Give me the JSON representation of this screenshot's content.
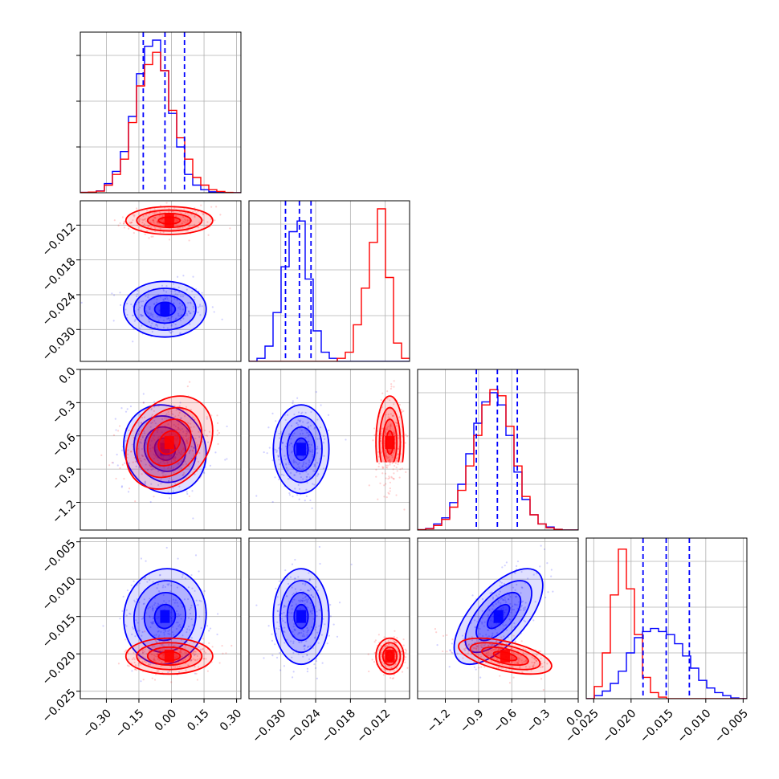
{
  "chart_data": {
    "type": "corner",
    "parameters": [
      {
        "id": "p0",
        "range": [
          -0.42,
          0.32
        ],
        "ticks": [
          -0.3,
          -0.15,
          0.0,
          0.15,
          0.3
        ],
        "tick_labels": [
          "−0.30",
          "−0.15",
          "0.00",
          "0.15",
          "0.30"
        ]
      },
      {
        "id": "p1",
        "range": [
          -0.0355,
          -0.0078
        ],
        "ticks": [
          -0.03,
          -0.024,
          -0.018,
          -0.012
        ],
        "tick_labels": [
          "−0.030",
          "−0.024",
          "−0.018",
          "−0.012"
        ]
      },
      {
        "id": "p2",
        "range": [
          -1.45,
          0.0
        ],
        "ticks": [
          -1.2,
          -0.9,
          -0.6,
          -0.3,
          0.0
        ],
        "tick_labels": [
          "−1.2",
          "−0.9",
          "−0.6",
          "−0.3",
          "0.0"
        ]
      },
      {
        "id": "p3",
        "range": [
          -0.026,
          -0.0045
        ],
        "ticks": [
          -0.025,
          -0.02,
          -0.015,
          -0.01,
          -0.005
        ],
        "tick_labels": [
          "−0.025",
          "−0.020",
          "−0.015",
          "−0.010",
          "−0.005"
        ]
      }
    ],
    "y_tick_params": {
      "p1": {
        "ticks": [
          -0.03,
          -0.024,
          -0.018,
          -0.012
        ],
        "tick_labels": [
          "−0.030",
          "−0.024",
          "−0.018",
          "−0.012"
        ]
      },
      "p2": {
        "ticks": [
          -1.2,
          -0.9,
          -0.6,
          -0.3,
          0.0
        ],
        "tick_labels": [
          "−1.2",
          "−0.9",
          "−0.6",
          "−0.3",
          "0.0"
        ]
      },
      "p3": {
        "ticks": [
          -0.025,
          -0.02,
          -0.015,
          -0.01,
          -0.005
        ],
        "tick_labels": [
          "−0.025",
          "−0.020",
          "−0.015",
          "−0.010",
          "−0.005"
        ]
      }
    },
    "series": [
      {
        "color": "#0000ff",
        "means": [
          -0.03,
          -0.0265,
          -0.72,
          -0.015
        ],
        "sigmas": [
          0.095,
          0.0024,
          0.2,
          0.0032
        ],
        "correlations": {
          "0-1": 0.0,
          "0-2": -0.1,
          "0-3": 0.05,
          "1-2": 0.0,
          "1-3": 0.0,
          "2-3": 0.65
        },
        "quantiles": [
          [
            -0.13,
            -0.03,
            0.06
          ],
          [
            -0.0292,
            -0.0268,
            -0.0248
          ],
          [
            -0.92,
            -0.73,
            -0.55
          ],
          [
            -0.0184,
            -0.0153,
            -0.0122
          ]
        ]
      },
      {
        "color": "#ff0000",
        "means": [
          -0.01,
          -0.0112,
          -0.66,
          -0.0203
        ],
        "sigmas": [
          0.1,
          0.0012,
          0.21,
          0.0012
        ],
        "correlations": {
          "0-1": 0.0,
          "0-2": 0.25,
          "0-3": 0.0,
          "1-2": 0.0,
          "1-3": 0.0,
          "2-3": -0.55
        },
        "quantiles": []
      }
    ],
    "histograms": [
      {
        "param": "p0",
        "bins": [
          -0.42,
          0.32
        ],
        "n_bins": 20,
        "blue": [
          0.002,
          0.004,
          0.012,
          0.06,
          0.14,
          0.27,
          0.5,
          0.78,
          0.96,
          1.0,
          0.8,
          0.52,
          0.3,
          0.12,
          0.05,
          0.02,
          0.006,
          0.002,
          0.0,
          0.0
        ],
        "red": [
          0.002,
          0.004,
          0.01,
          0.05,
          0.12,
          0.22,
          0.46,
          0.7,
          0.84,
          0.92,
          0.8,
          0.54,
          0.36,
          0.22,
          0.1,
          0.05,
          0.02,
          0.008,
          0.002,
          0.0
        ]
      },
      {
        "param": "p1",
        "bins": [
          -0.0355,
          -0.0078
        ],
        "n_bins": 20,
        "blue": [
          0.0,
          0.02,
          0.1,
          0.32,
          0.62,
          0.85,
          0.92,
          0.54,
          0.2,
          0.06,
          0.02,
          0.0,
          0.0,
          0.0,
          0.0,
          0.0,
          0.0,
          0.0,
          0.0,
          0.0
        ],
        "red": [
          0.0,
          0.0,
          0.0,
          0.0,
          0.0,
          0.0,
          0.0,
          0.0,
          0.0,
          0.0,
          0.0,
          0.02,
          0.06,
          0.24,
          0.48,
          0.78,
          1.0,
          0.55,
          0.12,
          0.02
        ]
      },
      {
        "param": "p2",
        "bins": [
          -1.45,
          0.0
        ],
        "n_bins": 20,
        "blue": [
          0.002,
          0.01,
          0.04,
          0.08,
          0.18,
          0.3,
          0.5,
          0.7,
          0.84,
          0.9,
          0.82,
          0.62,
          0.38,
          0.2,
          0.1,
          0.04,
          0.02,
          0.005,
          0.0,
          0.0
        ],
        "red": [
          0.002,
          0.008,
          0.03,
          0.07,
          0.15,
          0.26,
          0.42,
          0.62,
          0.82,
          0.92,
          0.88,
          0.68,
          0.42,
          0.22,
          0.1,
          0.04,
          0.015,
          0.004,
          0.0,
          0.0
        ]
      },
      {
        "param": "p3",
        "bins": [
          -0.026,
          -0.0045
        ],
        "n_bins": 20,
        "blue": [
          0.0,
          0.02,
          0.05,
          0.1,
          0.18,
          0.3,
          0.4,
          0.44,
          0.46,
          0.44,
          0.42,
          0.36,
          0.28,
          0.2,
          0.12,
          0.07,
          0.04,
          0.02,
          0.005,
          0.0
        ],
        "red": [
          0.0,
          0.08,
          0.3,
          0.68,
          0.98,
          0.72,
          0.42,
          0.14,
          0.04,
          0.01,
          0.0,
          0.0,
          0.0,
          0.0,
          0.0,
          0.0,
          0.0,
          0.0,
          0.0,
          0.0
        ]
      }
    ],
    "grid": true,
    "title": "",
    "xlabel": "",
    "ylabel": ""
  }
}
